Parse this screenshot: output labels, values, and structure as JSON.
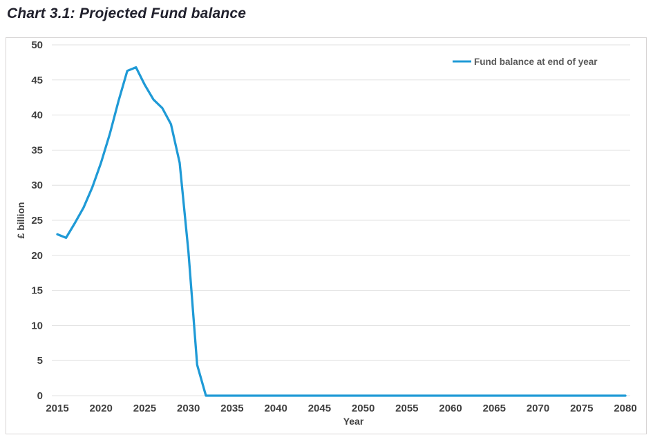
{
  "page": {
    "title": "Chart 3.1: Projected Fund balance"
  },
  "colors": {
    "series_blue": "#1f9ad6",
    "grid": "#e0e0e0",
    "tick_text": "#3f3f3f",
    "legend_text": "#595959",
    "title_text": "#21212d",
    "box_border": "#d7d4d4"
  },
  "chart_data": {
    "type": "line",
    "title": "Chart 3.1: Projected Fund balance",
    "xlabel": "Year",
    "ylabel": "£ billion",
    "legend_position": "top-right-inside",
    "grid": "horizontal-only",
    "xlim": [
      2015,
      2080
    ],
    "ylim": [
      0,
      50
    ],
    "y_tick_step": 5,
    "x_tick_step": 5,
    "x_tick_labels": [
      "2015",
      "2020",
      "2025",
      "2030",
      "2035",
      "2040",
      "2045",
      "2050",
      "2055",
      "2060",
      "2065",
      "2070",
      "2075",
      "2080"
    ],
    "y_tick_labels": [
      "0",
      "5",
      "10",
      "15",
      "20",
      "25",
      "30",
      "35",
      "40",
      "45",
      "50"
    ],
    "series": [
      {
        "name": "Fund balance at end of year",
        "color": "#1f9ad6",
        "x": [
          2015,
          2016,
          2017,
          2018,
          2019,
          2020,
          2021,
          2022,
          2023,
          2024,
          2025,
          2026,
          2027,
          2028,
          2029,
          2030,
          2031,
          2032,
          2033,
          2034,
          2035,
          2036,
          2037,
          2038,
          2039,
          2040,
          2041,
          2042,
          2043,
          2044,
          2045,
          2046,
          2047,
          2048,
          2049,
          2050,
          2051,
          2052,
          2053,
          2054,
          2055,
          2056,
          2057,
          2058,
          2059,
          2060,
          2061,
          2062,
          2063,
          2064,
          2065,
          2066,
          2067,
          2068,
          2069,
          2070,
          2071,
          2072,
          2073,
          2074,
          2075,
          2076,
          2077,
          2078,
          2079,
          2080
        ],
        "values": [
          23.0,
          22.5,
          24.6,
          26.8,
          29.7,
          33.2,
          37.3,
          42.0,
          46.3,
          46.8,
          44.3,
          42.2,
          41.0,
          38.7,
          33.2,
          20.5,
          4.4,
          0,
          0,
          0,
          0,
          0,
          0,
          0,
          0,
          0,
          0,
          0,
          0,
          0,
          0,
          0,
          0,
          0,
          0,
          0,
          0,
          0,
          0,
          0,
          0,
          0,
          0,
          0,
          0,
          0,
          0,
          0,
          0,
          0,
          0,
          0,
          0,
          0,
          0,
          0,
          0,
          0,
          0,
          0,
          0,
          0,
          0,
          0,
          0,
          0
        ]
      }
    ]
  }
}
